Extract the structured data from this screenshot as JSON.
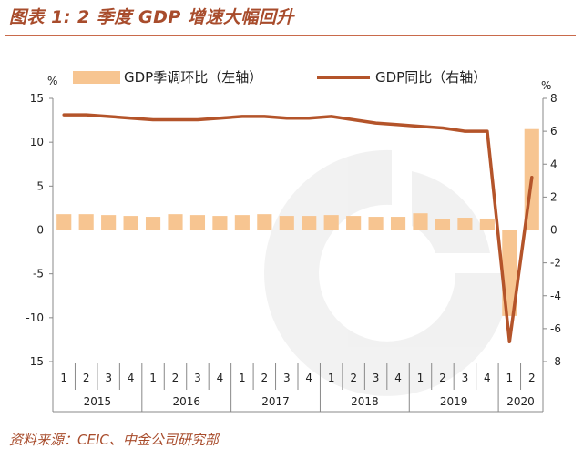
{
  "header": {
    "title": "图表 1: 2 季度 GDP 增速大幅回升"
  },
  "footer": {
    "source": "资料来源：CEIC、中金公司研究部"
  },
  "chart_data": {
    "type": "bar",
    "categories": [
      "2015Q1",
      "2015Q2",
      "2015Q3",
      "2015Q4",
      "2016Q1",
      "2016Q2",
      "2016Q3",
      "2016Q4",
      "2017Q1",
      "2017Q2",
      "2017Q3",
      "2017Q4",
      "2018Q1",
      "2018Q2",
      "2018Q3",
      "2018Q4",
      "2019Q1",
      "2019Q2",
      "2019Q3",
      "2019Q4",
      "2020Q1",
      "2020Q2"
    ],
    "quarter_labels": [
      "1",
      "2",
      "3",
      "4",
      "1",
      "2",
      "3",
      "4",
      "1",
      "2",
      "3",
      "4",
      "1",
      "2",
      "3",
      "4",
      "1",
      "2",
      "3",
      "4",
      "1",
      "2"
    ],
    "year_labels": [
      "2015",
      "2016",
      "2017",
      "2018",
      "2019",
      "2020"
    ],
    "series": [
      {
        "name": "GDP季调环比（左轴）",
        "type": "bar",
        "axis": "left",
        "color": "#f7c591",
        "values": [
          1.8,
          1.8,
          1.7,
          1.6,
          1.5,
          1.8,
          1.7,
          1.6,
          1.7,
          1.8,
          1.6,
          1.6,
          1.7,
          1.6,
          1.5,
          1.5,
          1.9,
          1.2,
          1.4,
          1.3,
          -9.8,
          11.5
        ]
      },
      {
        "name": "GDP同比（右轴）",
        "type": "line",
        "axis": "right",
        "color": "#b4542a",
        "values": [
          7.0,
          7.0,
          6.9,
          6.8,
          6.7,
          6.7,
          6.7,
          6.8,
          6.9,
          6.9,
          6.8,
          6.8,
          6.9,
          6.7,
          6.5,
          6.4,
          6.3,
          6.2,
          6.0,
          6.0,
          -6.8,
          3.2
        ]
      }
    ],
    "left_axis": {
      "unit": "%",
      "ylim": [
        -15,
        15
      ],
      "ticks": [
        15,
        10,
        5,
        0,
        -5,
        -10,
        -15
      ]
    },
    "right_axis": {
      "unit": "%",
      "ylim": [
        -8,
        8
      ],
      "ticks": [
        8,
        6,
        4,
        2,
        0,
        -2,
        -4,
        -6,
        -8
      ]
    },
    "legend_position": "top"
  }
}
